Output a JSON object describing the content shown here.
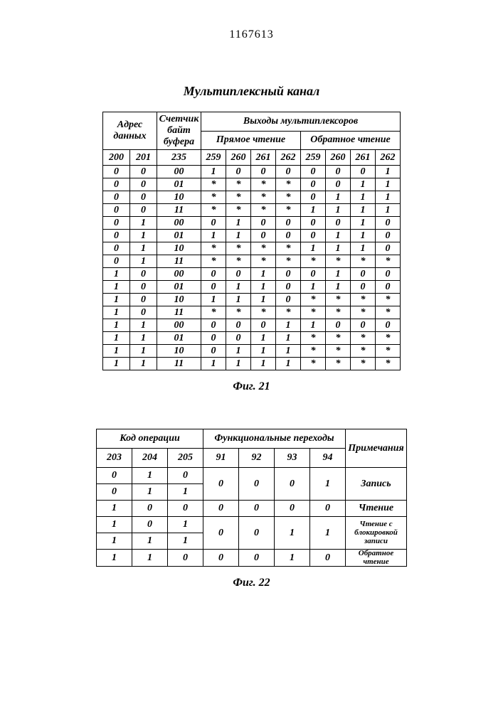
{
  "doc_number": "1167613",
  "title": "Мультиплексный канал",
  "table1": {
    "caption": "Фиг. 21",
    "h_addr": "Адрес данных",
    "h_counter": "Счетчик байт буфера",
    "h_outputs": "Выходы  мультиплексоров",
    "h_fwd": "Прямое чтение",
    "h_rev": "Обратное чтение",
    "col_addr_1": "200",
    "col_addr_2": "201",
    "col_counter": "235",
    "col_fwd_1": "259",
    "col_fwd_2": "260",
    "col_fwd_3": "261",
    "col_fwd_4": "262",
    "col_rev_1": "259",
    "col_rev_2": "260",
    "col_rev_3": "261",
    "col_rev_4": "262",
    "rows": [
      [
        "0",
        "0",
        "00",
        "1",
        "0",
        "0",
        "0",
        "0",
        "0",
        "0",
        "1"
      ],
      [
        "0",
        "0",
        "01",
        "*",
        "*",
        "*",
        "*",
        "0",
        "0",
        "1",
        "1"
      ],
      [
        "0",
        "0",
        "10",
        "*",
        "*",
        "*",
        "*",
        "0",
        "1",
        "1",
        "1"
      ],
      [
        "0",
        "0",
        "11",
        "*",
        "*",
        "*",
        "*",
        "1",
        "1",
        "1",
        "1"
      ],
      [
        "0",
        "1",
        "00",
        "0",
        "1",
        "0",
        "0",
        "0",
        "0",
        "1",
        "0"
      ],
      [
        "0",
        "1",
        "01",
        "1",
        "1",
        "0",
        "0",
        "0",
        "1",
        "1",
        "0"
      ],
      [
        "0",
        "1",
        "10",
        "*",
        "*",
        "*",
        "*",
        "1",
        "1",
        "1",
        "0"
      ],
      [
        "0",
        "1",
        "11",
        "*",
        "*",
        "*",
        "*",
        "*",
        "*",
        "*",
        "*"
      ],
      [
        "1",
        "0",
        "00",
        "0",
        "0",
        "1",
        "0",
        "0",
        "1",
        "0",
        "0"
      ],
      [
        "1",
        "0",
        "01",
        "0",
        "1",
        "1",
        "0",
        "1",
        "1",
        "0",
        "0"
      ],
      [
        "1",
        "0",
        "10",
        "1",
        "1",
        "1",
        "0",
        "*",
        "*",
        "*",
        "*"
      ],
      [
        "1",
        "0",
        "11",
        "*",
        "*",
        "*",
        "*",
        "*",
        "*",
        "*",
        "*"
      ],
      [
        "1",
        "1",
        "00",
        "0",
        "0",
        "0",
        "1",
        "1",
        "0",
        "0",
        "0"
      ],
      [
        "1",
        "1",
        "01",
        "0",
        "0",
        "1",
        "1",
        "*",
        "*",
        "*",
        "*"
      ],
      [
        "1",
        "1",
        "10",
        "0",
        "1",
        "1",
        "1",
        "*",
        "*",
        "*",
        "*"
      ],
      [
        "1",
        "1",
        "11",
        "1",
        "1",
        "1",
        "1",
        "*",
        "*",
        "*",
        "*"
      ]
    ],
    "widths": {
      "addr_each": 38,
      "counter": 62,
      "mux_each": 35
    }
  },
  "table2": {
    "caption": "Фиг. 22",
    "h_opcode": "Код  операции",
    "h_func": "Функциональные переходы",
    "h_notes": "Примеча­ния",
    "col_op_1": "203",
    "col_op_2": "204",
    "col_op_3": "205",
    "col_f1": "91",
    "col_f2": "92",
    "col_f3": "93",
    "col_f4": "94",
    "note_write": "Запись",
    "note_read": "Чтение",
    "note_readlock": "Чтение с блокиров­кой записи",
    "note_revread": "Обратное чтение",
    "rows_op": [
      [
        "0",
        "1",
        "0"
      ],
      [
        "0",
        "1",
        "1"
      ],
      [
        "1",
        "0",
        "0"
      ],
      [
        "1",
        "0",
        "1"
      ],
      [
        "1",
        "1",
        "1"
      ],
      [
        "1",
        "1",
        "0"
      ]
    ],
    "func_rows": [
      [
        "0",
        "0",
        "0",
        "1"
      ],
      [
        "0",
        "0",
        "0",
        "0"
      ],
      [
        "0",
        "0",
        "1",
        "1"
      ],
      [
        "0",
        "0",
        "1",
        "0"
      ]
    ],
    "widths": {
      "op_each": 50,
      "func_each": 50,
      "notes": 86
    }
  },
  "styling": {
    "background": "#ffffff",
    "border_color": "#000000",
    "text_color": "#000000",
    "font_family": "Times New Roman",
    "font_style": "italic",
    "font_weight": "bold"
  }
}
